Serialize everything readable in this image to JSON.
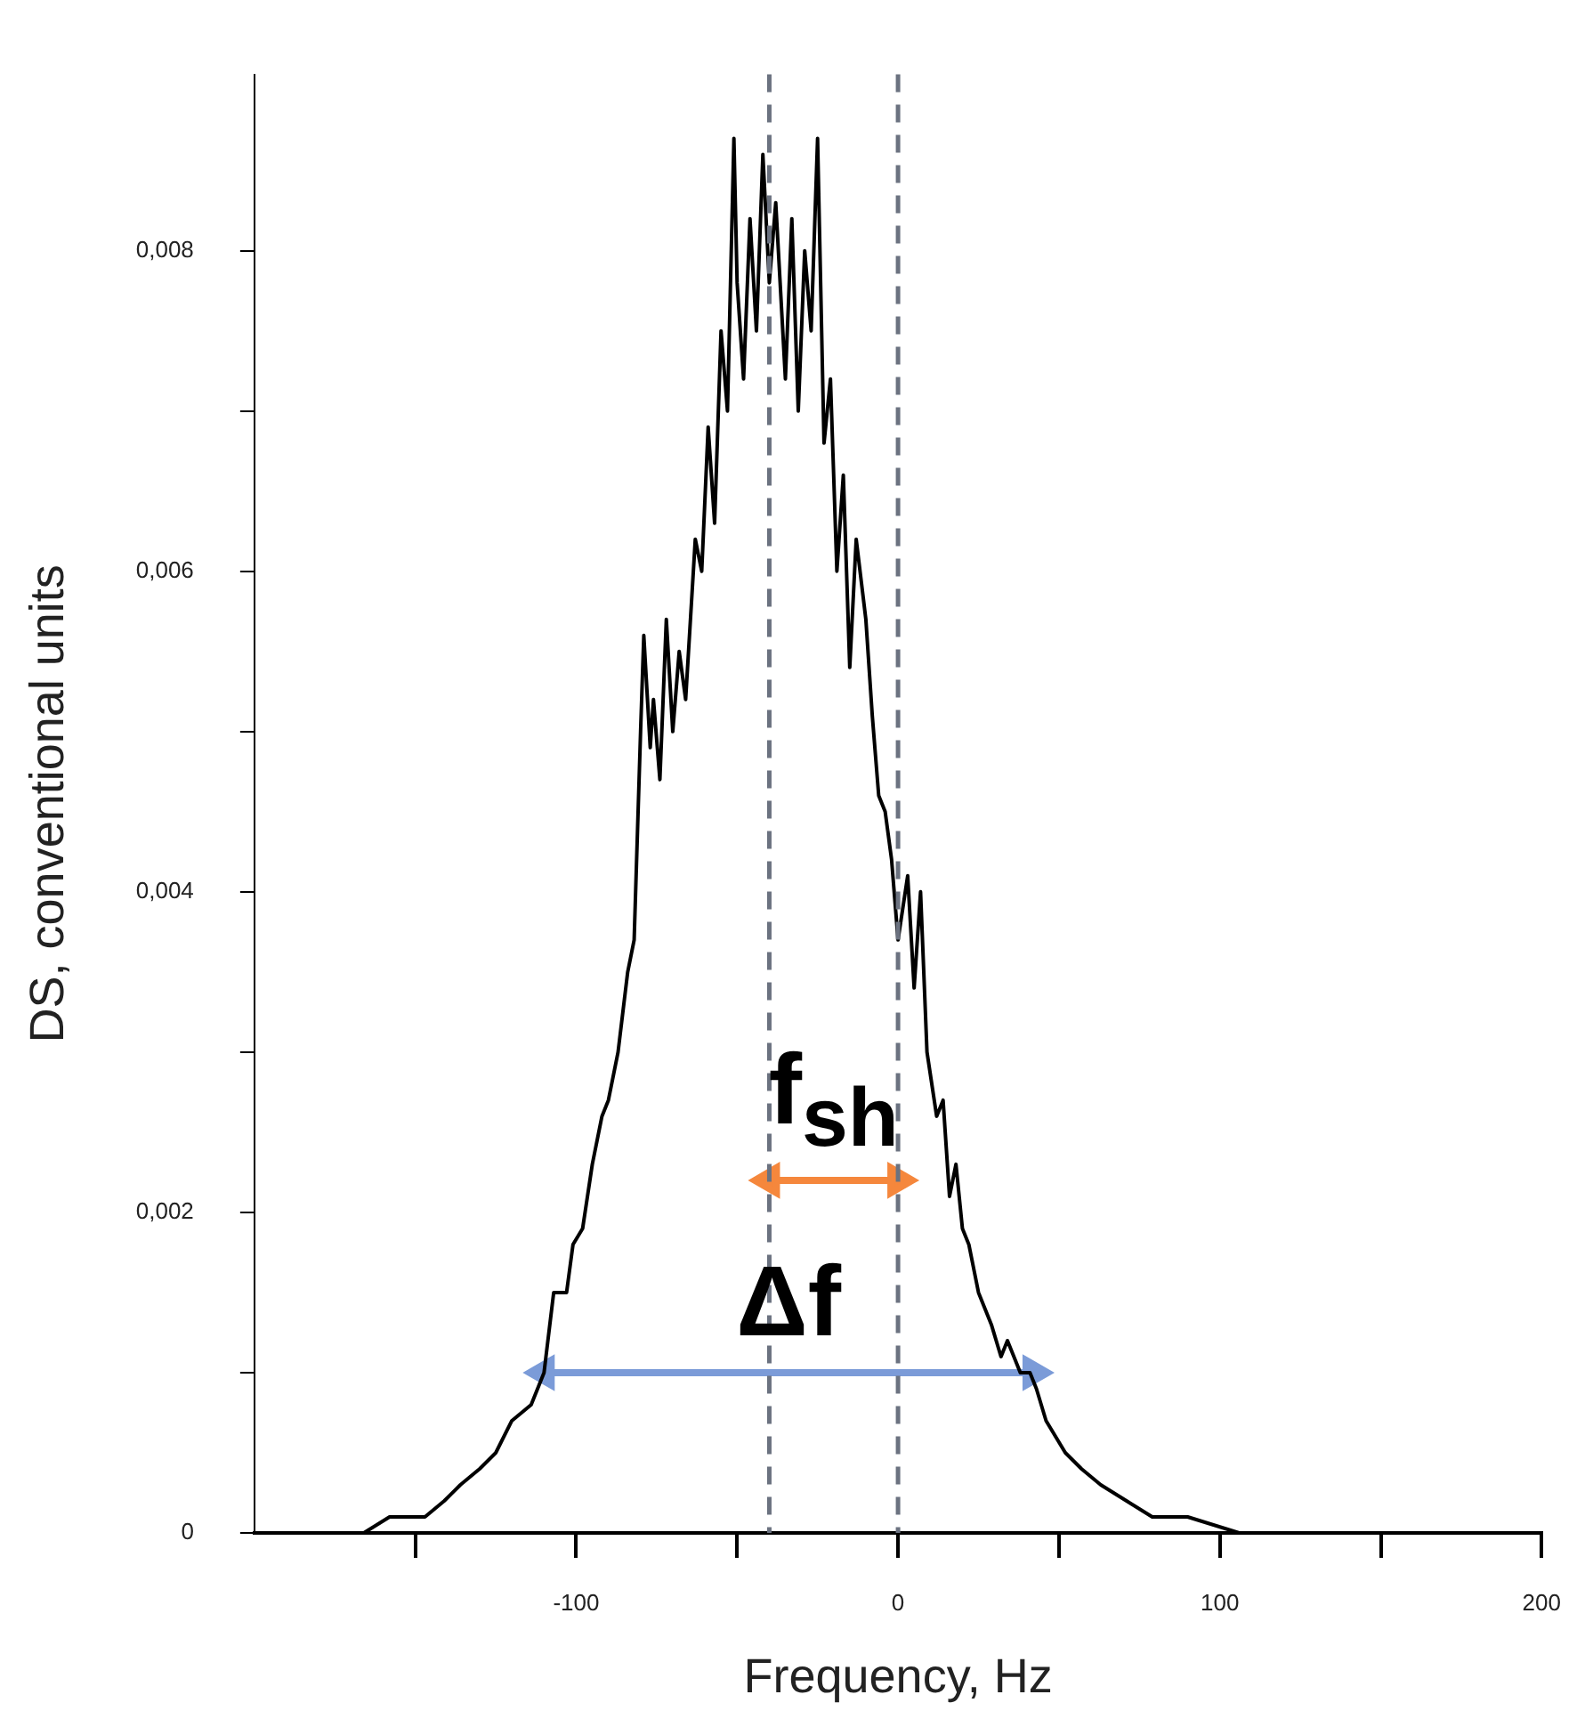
{
  "chart_data": {
    "type": "line",
    "xlabel": "Frequency, Hz",
    "ylabel": "DS, conventional units",
    "xlim": [
      -200,
      200
    ],
    "ylim": [
      0,
      0.0091
    ],
    "xticks": [
      {
        "value": -150,
        "label": null
      },
      -100,
      {
        "value": -50,
        "label": null
      },
      0,
      {
        "value": 50,
        "label": null
      },
      100,
      {
        "value": 150,
        "label": null
      },
      200
    ],
    "yticks": [
      0,
      {
        "value": 0.001,
        "label": null
      },
      {
        "value": 0.002,
        "label": "0,002"
      },
      {
        "value": 0.003,
        "label": null
      },
      {
        "value": 0.004,
        "label": "0,004"
      },
      {
        "value": 0.005,
        "label": null
      },
      {
        "value": 0.006,
        "label": "0,006"
      },
      {
        "value": 0.007,
        "label": null
      },
      {
        "value": 0.008,
        "label": "0,008"
      }
    ],
    "legend": false,
    "marker": "none",
    "line_style": "solid",
    "series": [
      {
        "color": "#000000",
        "x": [
          -200,
          -187,
          -174,
          -166,
          -158,
          -152,
          -147,
          -141,
          -136,
          -130,
          -125,
          -120,
          -114,
          -110,
          -107,
          -103,
          -101,
          -98,
          -95,
          -92,
          -90,
          -87,
          -84,
          -82,
          -80,
          -79,
          -77,
          -76,
          -74,
          -72,
          -70,
          -68,
          -66,
          -63,
          -61,
          -59,
          -57,
          -55,
          -53,
          -51,
          -50,
          -48,
          -46,
          -44,
          -42,
          -40,
          -38,
          -35,
          -33,
          -31,
          -29,
          -27,
          -25,
          -23,
          -21,
          -19,
          -17,
          -15,
          -13,
          -10,
          -8,
          -6,
          -4,
          -2,
          0,
          3,
          5,
          7,
          9,
          12,
          14,
          16,
          18,
          20,
          22,
          25,
          27,
          29,
          32,
          34,
          38,
          41,
          43,
          46,
          52,
          57,
          63,
          71,
          79,
          90,
          106,
          128,
          160,
          200
        ],
        "values": [
          0,
          0,
          0,
          0,
          0.0001,
          0.0001,
          0.0001,
          0.0002,
          0.0003,
          0.0004,
          0.0005,
          0.0007,
          0.0008,
          0.001,
          0.0015,
          0.0015,
          0.0018,
          0.0019,
          0.0023,
          0.0026,
          0.0027,
          0.003,
          0.0035,
          0.0037,
          0.005,
          0.0056,
          0.0049,
          0.0052,
          0.0047,
          0.0057,
          0.005,
          0.0055,
          0.0052,
          0.0062,
          0.006,
          0.0069,
          0.0063,
          0.0075,
          0.007,
          0.0087,
          0.0078,
          0.0072,
          0.0082,
          0.0075,
          0.0086,
          0.0078,
          0.0083,
          0.0072,
          0.0082,
          0.007,
          0.008,
          0.0075,
          0.0087,
          0.0068,
          0.0072,
          0.006,
          0.0066,
          0.0054,
          0.0062,
          0.0057,
          0.0051,
          0.0046,
          0.0045,
          0.0042,
          0.0037,
          0.0041,
          0.0034,
          0.004,
          0.003,
          0.0026,
          0.0027,
          0.0021,
          0.0023,
          0.0019,
          0.0018,
          0.0015,
          0.0014,
          0.0013,
          0.0011,
          0.0012,
          0.001,
          0.001,
          0.0009,
          0.0007,
          0.0005,
          0.0004,
          0.0003,
          0.0002,
          0.0001,
          0.0001,
          0,
          0,
          0,
          0
        ]
      },
      {
        "color": "#7b9bd8",
        "marker": "triangle",
        "x": [
          -110,
          42
        ],
        "values": [
          0.001,
          0.001
        ]
      },
      {
        "color": "#f5873c",
        "marker": "triangle",
        "x": [
          -40,
          0
        ],
        "values": [
          0.0022,
          0.0022
        ]
      }
    ],
    "ref_lines": [
      {
        "axis": "x",
        "value": -40,
        "color": "#6b7280",
        "line_style": "dashed"
      },
      {
        "axis": "x",
        "value": 0,
        "color": "#6b7280",
        "line_style": "dashed"
      }
    ],
    "annotations": [
      "Δf",
      "f$_{sh}$"
    ]
  }
}
